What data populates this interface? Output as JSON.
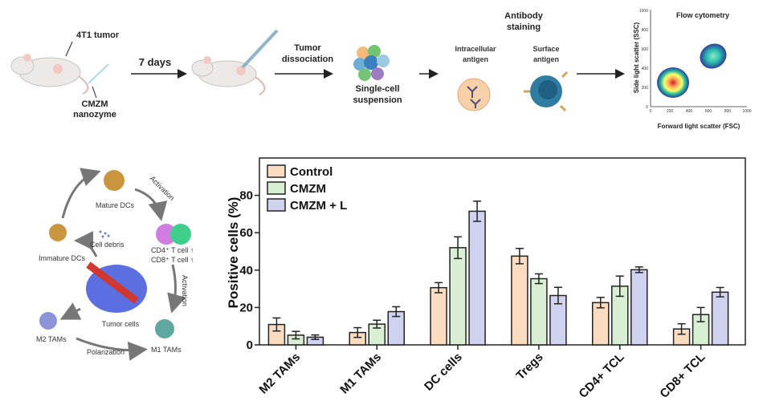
{
  "workflow": {
    "tumor_label": "4T1 tumor",
    "injection_label": [
      "CMZM",
      "nanozyme"
    ],
    "interval_label": "7 days",
    "dissociation_label": [
      "Tumor",
      "dissociation"
    ],
    "suspension_label": [
      "Single-cell",
      "suspension"
    ],
    "staining_title": [
      "Antibody",
      "staining"
    ],
    "intracellular_label": [
      "Intracellular",
      "antigen"
    ],
    "surface_label": [
      "Surface",
      "antigen"
    ],
    "flow": {
      "title": "Flow cytometry",
      "xlabel": "Forward light scatter (FSC)",
      "ylabel": "Side light scatter (SSC)",
      "xticks": [
        "0",
        "200",
        "400",
        "600",
        "800",
        "1000"
      ],
      "yticks": [
        "0",
        "200",
        "400",
        "600",
        "800",
        "1000"
      ]
    }
  },
  "cycle_diagram": {
    "mature_dcs": "Mature DCs",
    "activation_1": "Activation",
    "cd4": "CD4⁺ T cell ↑",
    "cd8": "CD8⁺ T cell ↑",
    "cell_debris": "Cell debris",
    "immature_dcs": "Immature DCs",
    "activation_2": "Activation",
    "tumor_cells": "Tumor cells",
    "m2_tams": "M2 TAMs",
    "polarization": "Polarization",
    "m1_tams": "M1 TAMs"
  },
  "chart_data": {
    "type": "bar",
    "ylabel": "Positive cells (%)",
    "xlabel": "",
    "ylim": [
      0,
      100
    ],
    "yticks": [
      "0",
      "20",
      "40",
      "60",
      "80"
    ],
    "categories": [
      "M2 TAMs",
      "M1 TAMs",
      "DC cells",
      "Tregs",
      "CD4+ TCL",
      "CD8+ TCL"
    ],
    "legend_position": "top-left",
    "grid": false,
    "series": [
      {
        "name": "Control",
        "color": "#fbdcc0",
        "values": [
          10.9,
          6.6,
          30.6,
          47.5,
          22.6,
          8.5
        ],
        "errors": [
          3.5,
          2.6,
          2.7,
          4.1,
          2.8,
          2.8
        ]
      },
      {
        "name": "CMZM",
        "color": "#d8efd3",
        "values": [
          5.2,
          11.1,
          52.0,
          35.4,
          31.4,
          16.2
        ],
        "errors": [
          2.0,
          2.1,
          5.8,
          2.6,
          5.4,
          3.8
        ]
      },
      {
        "name": "CMZM + L",
        "color": "#cfd3ef",
        "values": [
          4.1,
          17.8,
          71.5,
          26.4,
          40.2,
          28.2
        ],
        "errors": [
          1.2,
          2.6,
          5.4,
          4.4,
          1.5,
          2.5
        ]
      }
    ]
  }
}
